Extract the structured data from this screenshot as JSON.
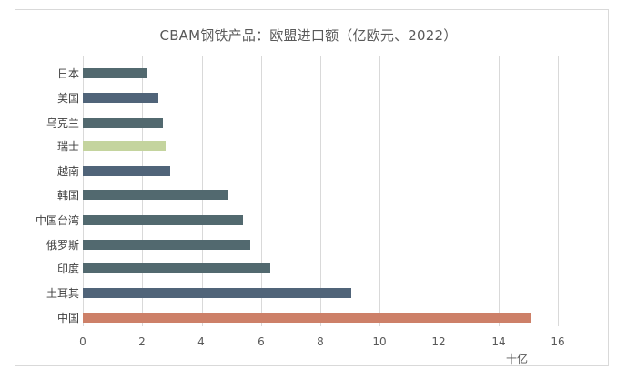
{
  "chart_data": {
    "type": "bar",
    "orientation": "horizontal",
    "title": "CBAM钢铁产品：欧盟进口额（亿欧元、2022）",
    "xlabel": "十亿",
    "ylabel": "",
    "xlim": [
      0,
      16
    ],
    "xticks": [
      0,
      2,
      4,
      6,
      8,
      10,
      12,
      14,
      16
    ],
    "grid": true,
    "legend": null,
    "categories": [
      "日本",
      "美国",
      "乌克兰",
      "瑞士",
      "越南",
      "韩国",
      "中国台湾",
      "俄罗斯",
      "印度",
      "土耳其",
      "中国"
    ],
    "values": [
      2.15,
      2.55,
      2.7,
      2.8,
      2.95,
      4.9,
      5.4,
      5.65,
      6.3,
      9.05,
      15.1
    ],
    "colors": [
      "#52696f",
      "#506479",
      "#52696f",
      "#c4d49e",
      "#506479",
      "#52696f",
      "#52696f",
      "#52696f",
      "#52696f",
      "#506479",
      "#cd8068"
    ]
  },
  "ticks": {
    "t0": "0",
    "t1": "2",
    "t2": "4",
    "t3": "6",
    "t4": "8",
    "t5": "10",
    "t6": "12",
    "t7": "14",
    "t8": "16"
  }
}
